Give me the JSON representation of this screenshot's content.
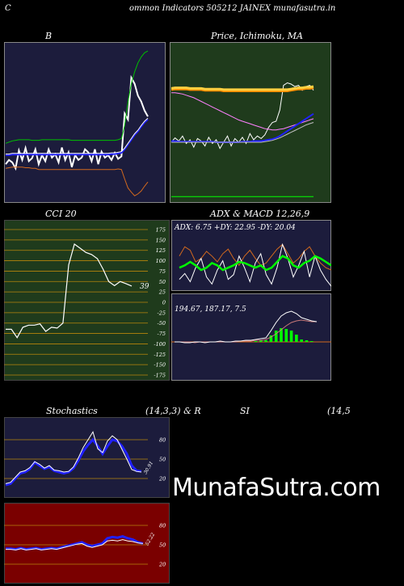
{
  "header": {
    "c_letter": "C",
    "title": "ommon  Indicators 505212  JAINEX  munafasutra.in"
  },
  "watermark": "MunafaSutra.com",
  "colors": {
    "panel_navy": "#1c1c3c",
    "panel_green": "#1f3b1c",
    "panel_red": "#7a0000",
    "white": "#ffffff",
    "blue": "#2020ff",
    "green": "#00c000",
    "orange": "#d2691e",
    "bright_green": "#00ff00",
    "gridline": "#b8860b"
  },
  "chart_data": [
    {
      "id": "bollinger",
      "type": "line",
      "title": "B",
      "series": [
        {
          "color": "#ffffff",
          "values": [
            165,
            172,
            168,
            158,
            188,
            172,
            192,
            170,
            175,
            190,
            165,
            180,
            170,
            190,
            176,
            182,
            168,
            193,
            172,
            185,
            160,
            180,
            172,
            176,
            190,
            185,
            170,
            190,
            165,
            186,
            176,
            180,
            172,
            184,
            174,
            178,
            250,
            240,
            310,
            300,
            280,
            270,
            255,
            245
          ]
        },
        {
          "color": "#00c000",
          "values": [
            200,
            202,
            204,
            205,
            206,
            206,
            206,
            206,
            205,
            205,
            205,
            206,
            206,
            206,
            206,
            206,
            206,
            206,
            206,
            206,
            205,
            205,
            205,
            205,
            205,
            205,
            205,
            205,
            205,
            205,
            205,
            205,
            205,
            205,
            206,
            208,
            230,
            270,
            300,
            320,
            335,
            345,
            352,
            355
          ]
        },
        {
          "color": "#2020ff",
          "values": [
            180,
            180,
            181,
            181,
            181,
            181,
            181,
            181,
            181,
            181,
            181,
            181,
            181,
            181,
            181,
            181,
            181,
            181,
            181,
            181,
            181,
            181,
            181,
            181,
            181,
            181,
            181,
            181,
            181,
            181,
            181,
            181,
            182,
            182,
            183,
            184,
            190,
            198,
            206,
            214,
            220,
            228,
            235,
            240
          ]
        },
        {
          "color": "#ffffff",
          "values": [
            182,
            182,
            183,
            183,
            183,
            183,
            183,
            183,
            183,
            183,
            183,
            183,
            183,
            183,
            183,
            183,
            183,
            183,
            183,
            183,
            183,
            183,
            183,
            183,
            183,
            183,
            183,
            183,
            183,
            183,
            183,
            183,
            184,
            184,
            185,
            186,
            192,
            200,
            208,
            216,
            222,
            230,
            237,
            242
          ]
        },
        {
          "color": "#d2691e",
          "values": [
            158,
            159,
            160,
            160,
            160,
            160,
            159,
            159,
            158,
            158,
            156,
            156,
            156,
            156,
            156,
            156,
            156,
            156,
            156,
            156,
            156,
            156,
            156,
            156,
            156,
            156,
            156,
            156,
            156,
            156,
            156,
            156,
            156,
            156,
            157,
            156,
            140,
            125,
            118,
            112,
            115,
            120,
            128,
            135
          ]
        }
      ]
    },
    {
      "id": "price_ma",
      "type": "line",
      "title": "Price,  Ichimoku,  MA",
      "series": [
        {
          "color": "#ffffff",
          "values": [
            238,
            245,
            240,
            248,
            236,
            242,
            230,
            244,
            240,
            232,
            246,
            236,
            242,
            228,
            238,
            248,
            232,
            244,
            238,
            246,
            236,
            252,
            242,
            248,
            244,
            250,
            262,
            270,
            272,
            290,
            330,
            334,
            332,
            328,
            330,
            322,
            328,
            330,
            322
          ]
        },
        {
          "color": "#ff8c00",
          "values": [
            323,
            324,
            324,
            324,
            324,
            323,
            323,
            323,
            323,
            322,
            322,
            322,
            322,
            322,
            321,
            321,
            321,
            321,
            321,
            321,
            321,
            321,
            321,
            321,
            321,
            321,
            321,
            321,
            321,
            321,
            321,
            321,
            322,
            323,
            324,
            324,
            325,
            325,
            326
          ]
        },
        {
          "color": "#ffd040",
          "values": [
            325,
            326,
            326,
            326,
            326,
            325,
            325,
            325,
            325,
            324,
            324,
            324,
            324,
            324,
            323,
            323,
            323,
            323,
            323,
            323,
            323,
            323,
            323,
            323,
            323,
            323,
            323,
            323,
            323,
            323,
            323,
            323,
            324,
            325,
            326,
            326,
            327,
            327,
            328
          ]
        },
        {
          "color": "#ff80ff",
          "values": [
            318,
            318,
            317,
            316,
            314,
            312,
            310,
            307,
            304,
            301,
            298,
            295,
            292,
            289,
            286,
            283,
            280,
            277,
            274,
            272,
            270,
            268,
            266,
            264,
            262,
            260,
            259,
            258,
            258,
            259,
            260,
            262,
            264,
            266,
            268,
            270,
            272,
            274,
            276
          ]
        },
        {
          "color": "#2020ff",
          "values": [
            240,
            240,
            239,
            239,
            239,
            239,
            239,
            239,
            239,
            239,
            239,
            239,
            238,
            238,
            238,
            238,
            238,
            238,
            238,
            239,
            239,
            239,
            240,
            240,
            240,
            241,
            242,
            243,
            245,
            248,
            252,
            256,
            260,
            264,
            268,
            272,
            276,
            280,
            284
          ]
        },
        {
          "color": "#c0c0c0",
          "values": [
            238,
            238,
            238,
            238,
            238,
            238,
            238,
            238,
            238,
            238,
            238,
            238,
            238,
            238,
            238,
            238,
            238,
            238,
            238,
            238,
            238,
            238,
            238,
            238,
            238,
            239,
            240,
            241,
            243,
            245,
            248,
            251,
            254,
            257,
            260,
            263,
            266,
            268,
            270
          ]
        },
        {
          "color": "#00ff00",
          "values": [
            150,
            150,
            150,
            150,
            150,
            150,
            150,
            150,
            150,
            150,
            150,
            150,
            150,
            150,
            150,
            150,
            150,
            150,
            150,
            150,
            150,
            150,
            150,
            150,
            150,
            150,
            150,
            150,
            150,
            150,
            150,
            150,
            150,
            150,
            150,
            150,
            150,
            150,
            150
          ]
        }
      ]
    },
    {
      "id": "cci",
      "type": "line",
      "title": "CCI 20",
      "ylim": [
        -175,
        175
      ],
      "yticks": [
        175,
        150,
        125,
        100,
        75,
        50,
        25,
        0,
        -25,
        -50,
        -75,
        -100,
        -125,
        -150,
        -175
      ],
      "last_label": "39",
      "series": [
        {
          "color": "#ffffff",
          "values": [
            -65,
            -65,
            -85,
            -60,
            -55,
            -55,
            -52,
            -70,
            -60,
            -62,
            -50,
            90,
            140,
            130,
            120,
            115,
            105,
            80,
            50,
            40,
            50,
            45,
            39
          ]
        }
      ]
    },
    {
      "id": "adx",
      "type": "line",
      "title": "ADX  & MACD 12,26,9",
      "label": "ADX: 6.75  +DY: 22.95  -DY: 20.04",
      "series": [
        {
          "color": "#00ff00",
          "values": [
            20,
            22,
            25,
            22,
            18,
            20,
            24,
            22,
            18,
            20,
            22,
            25,
            24,
            22,
            20,
            22,
            18,
            20,
            25,
            30,
            28,
            22,
            20,
            24,
            26,
            30,
            28,
            25,
            22
          ]
        },
        {
          "color": "#d2691e",
          "values": [
            30,
            38,
            35,
            25,
            28,
            34,
            30,
            25,
            32,
            36,
            28,
            22,
            30,
            35,
            28,
            22,
            24,
            30,
            36,
            40,
            32,
            24,
            28,
            34,
            38,
            30,
            24,
            20,
            18
          ]
        },
        {
          "color": "#ffffff",
          "values": [
            10,
            15,
            8,
            20,
            28,
            12,
            6,
            18,
            26,
            10,
            14,
            30,
            20,
            8,
            24,
            32,
            14,
            6,
            20,
            40,
            28,
            12,
            22,
            34,
            12,
            30,
            18,
            10,
            4
          ]
        }
      ]
    },
    {
      "id": "macd",
      "type": "line",
      "label": "194.67,  187.17,  7.5",
      "series": [
        {
          "color": "#ffffff",
          "values": [
            0,
            0,
            -1,
            -1,
            0,
            0,
            -1,
            0,
            0,
            1,
            0,
            0,
            1,
            1,
            2,
            2,
            3,
            4,
            5,
            14,
            24,
            32,
            36,
            38,
            35,
            30,
            28,
            26,
            25
          ]
        },
        {
          "color": "#c87878",
          "values": [
            0,
            0,
            0,
            0,
            -1,
            0,
            0,
            0,
            0,
            0,
            0,
            0,
            0,
            1,
            1,
            1,
            2,
            2,
            3,
            6,
            10,
            15,
            20,
            24,
            26,
            27,
            26,
            25,
            25
          ]
        },
        {
          "color": "#00ff00",
          "type": "bar",
          "values": [
            0,
            0,
            0,
            0,
            0,
            0,
            0,
            0,
            0,
            0,
            0,
            0,
            0,
            0,
            0,
            0,
            1,
            2,
            2,
            8,
            14,
            17,
            16,
            14,
            9,
            3,
            2,
            1,
            0
          ]
        }
      ]
    },
    {
      "id": "stochastics",
      "type": "line",
      "title": "Stochastics",
      "params": "(14,3,3) & R",
      "ylim": [
        0,
        100
      ],
      "yticks": [
        80,
        50,
        20
      ],
      "last_label": "30.91",
      "series": [
        {
          "color": "#2020ff",
          "values": [
            10,
            12,
            20,
            28,
            30,
            35,
            45,
            40,
            35,
            38,
            32,
            30,
            28,
            30,
            36,
            48,
            62,
            72,
            80,
            70,
            58,
            70,
            80,
            78,
            70,
            58,
            40,
            32,
            31
          ]
        },
        {
          "color": "#ffffff",
          "values": [
            12,
            14,
            22,
            30,
            32,
            37,
            46,
            42,
            36,
            40,
            33,
            32,
            30,
            31,
            38,
            52,
            68,
            80,
            92,
            66,
            60,
            78,
            86,
            80,
            65,
            50,
            34,
            31,
            30
          ]
        }
      ]
    },
    {
      "id": "rsi",
      "type": "line",
      "title": "SI",
      "params": "(14,5",
      "ylim": [
        0,
        100
      ],
      "yticks": [
        80,
        50,
        20
      ],
      "last_label": "52.22",
      "series": [
        {
          "color": "#2020ff",
          "values": [
            44,
            44,
            43,
            45,
            43,
            44,
            45,
            43,
            44,
            45,
            44,
            46,
            48,
            50,
            52,
            54,
            50,
            48,
            50,
            52,
            60,
            62,
            61,
            63,
            60,
            58,
            54,
            52
          ]
        },
        {
          "color": "#ffffff",
          "values": [
            43,
            43,
            42,
            44,
            42,
            43,
            44,
            42,
            43,
            44,
            43,
            45,
            47,
            49,
            51,
            52,
            48,
            46,
            48,
            50,
            56,
            57,
            56,
            58,
            56,
            55,
            53,
            52
          ]
        }
      ]
    }
  ]
}
